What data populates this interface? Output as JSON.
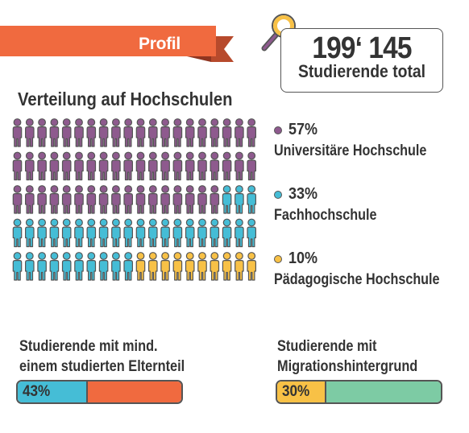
{
  "header": {
    "ribbon_label": "Profil",
    "total_number": "199‘ 145",
    "total_label": "Studierende total"
  },
  "colors": {
    "ribbon": "#f06a3f",
    "universitaere": "#8e5a8e",
    "fachhochschule": "#45bdd6",
    "paedagogische": "#f8c146",
    "bar1_rest": "#f06a3f",
    "bar2_rest": "#7dcba4",
    "outline": "#555555"
  },
  "icons": {
    "magnifier": "magnifier-icon",
    "person": "person-icon"
  },
  "chart_data": [
    {
      "type": "pictogram",
      "title": "Verteilung auf Hochschulen",
      "total_icons": 100,
      "series": [
        {
          "name": "Universitäre Hochschule",
          "value": 57,
          "label": "57%"
        },
        {
          "name": "Fachhochschule",
          "value": 33,
          "label": "33%"
        },
        {
          "name": "Pädagogische Hochschule",
          "value": 10,
          "label": "10%"
        }
      ]
    },
    {
      "type": "bar",
      "title": "Studierende mit mind. einem studierten Elternteil",
      "title_lines": [
        "Studierende mit mind.",
        "einem studierten Elternteil"
      ],
      "value": 43,
      "label": "43%"
    },
    {
      "type": "bar",
      "title": "Studierende mit Migrationshintergrund",
      "title_lines": [
        "Studierende mit",
        "Migrationshintergrund"
      ],
      "value": 30,
      "label": "30%"
    }
  ]
}
